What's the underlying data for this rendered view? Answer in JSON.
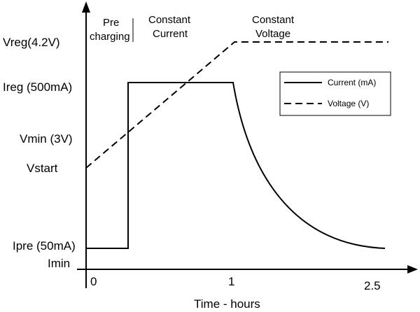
{
  "phases": [
    {
      "id": "pre",
      "lines": [
        "Pre",
        "charging"
      ]
    },
    {
      "id": "cc",
      "lines": [
        "Constant",
        "Current"
      ]
    },
    {
      "id": "cv",
      "lines": [
        "Constant",
        "Voltage"
      ]
    }
  ],
  "y_levels": [
    {
      "id": "vreg",
      "label": "Vreg(4.2V)"
    },
    {
      "id": "ireg",
      "label": "Ireg (500mA)"
    },
    {
      "id": "vmin",
      "label": "Vmin (3V)"
    },
    {
      "id": "vstart",
      "label": "Vstart"
    },
    {
      "id": "ipre",
      "label": "Ipre (50mA)"
    },
    {
      "id": "imin",
      "label": "Imin"
    }
  ],
  "x_ticks": [
    {
      "id": "t0",
      "label": "0"
    },
    {
      "id": "t1",
      "label": "1"
    },
    {
      "id": "t25",
      "label": "2.5"
    }
  ],
  "x_title": "Time - hours",
  "legend": [
    {
      "id": "current",
      "label": "Current (mA)",
      "style": "solid"
    },
    {
      "id": "voltage",
      "label": "Voltage (V)",
      "style": "dashed"
    }
  ],
  "colors": {
    "line": "#000000",
    "background": "#ffffff"
  }
}
